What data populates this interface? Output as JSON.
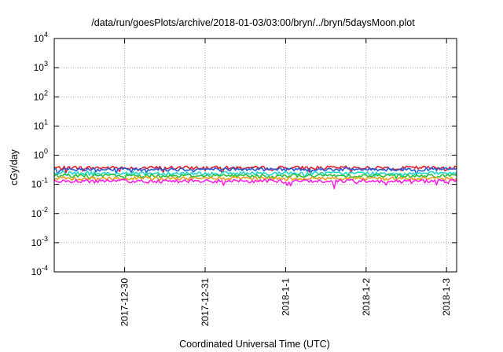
{
  "chart_data": {
    "type": "line",
    "title": "/data/run/goesPlots/archive/2018-01-03/03:00/bryn/../bryn/5daysMoon.plot",
    "xlabel": "Coordinated Universal Time (UTC)",
    "ylabel": "cGy/day",
    "yscale": "log",
    "ylim": [
      0.0001,
      10000
    ],
    "y_ticks": [
      {
        "base": "10",
        "exp": "-4",
        "value": 0.0001
      },
      {
        "base": "10",
        "exp": "-3",
        "value": 0.001
      },
      {
        "base": "10",
        "exp": "-2",
        "value": 0.01
      },
      {
        "base": "10",
        "exp": "-1",
        "value": 0.1
      },
      {
        "base": "10",
        "exp": "0",
        "value": 1
      },
      {
        "base": "10",
        "exp": "1",
        "value": 10
      },
      {
        "base": "10",
        "exp": "2",
        "value": 100
      },
      {
        "base": "10",
        "exp": "3",
        "value": 1000
      },
      {
        "base": "10",
        "exp": "4",
        "value": 10000
      }
    ],
    "xlim": [
      "2017-12-29T03:00",
      "2018-01-03T03:00"
    ],
    "x_ticks": [
      {
        "label": "2017-12-30",
        "value": "2017-12-30T00:00"
      },
      {
        "label": "2017-12-31",
        "value": "2017-12-31T00:00"
      },
      {
        "label": "2018-1-1",
        "value": "2018-01-01T00:00"
      },
      {
        "label": "2018-1-2",
        "value": "2018-01-02T00:00"
      },
      {
        "label": "2018-1-3",
        "value": "2018-01-03T00:00"
      }
    ],
    "grid": true,
    "legend": "none",
    "series": [
      {
        "color": "#e0202a",
        "level": 0.37,
        "spike_min": 0.24
      },
      {
        "color": "#2a5ad8",
        "level": 0.33,
        "spike_min": 0.21
      },
      {
        "color": "#20d8d0",
        "level": 0.24,
        "spike_min": 0.17
      },
      {
        "color": "#2ec040",
        "level": 0.2,
        "spike_min": 0.14
      },
      {
        "color": "#e8a020",
        "level": 0.16,
        "spike_min": 0.12
      },
      {
        "color": "#ff20e8",
        "level": 0.13,
        "spike_min": 0.065
      }
    ]
  }
}
